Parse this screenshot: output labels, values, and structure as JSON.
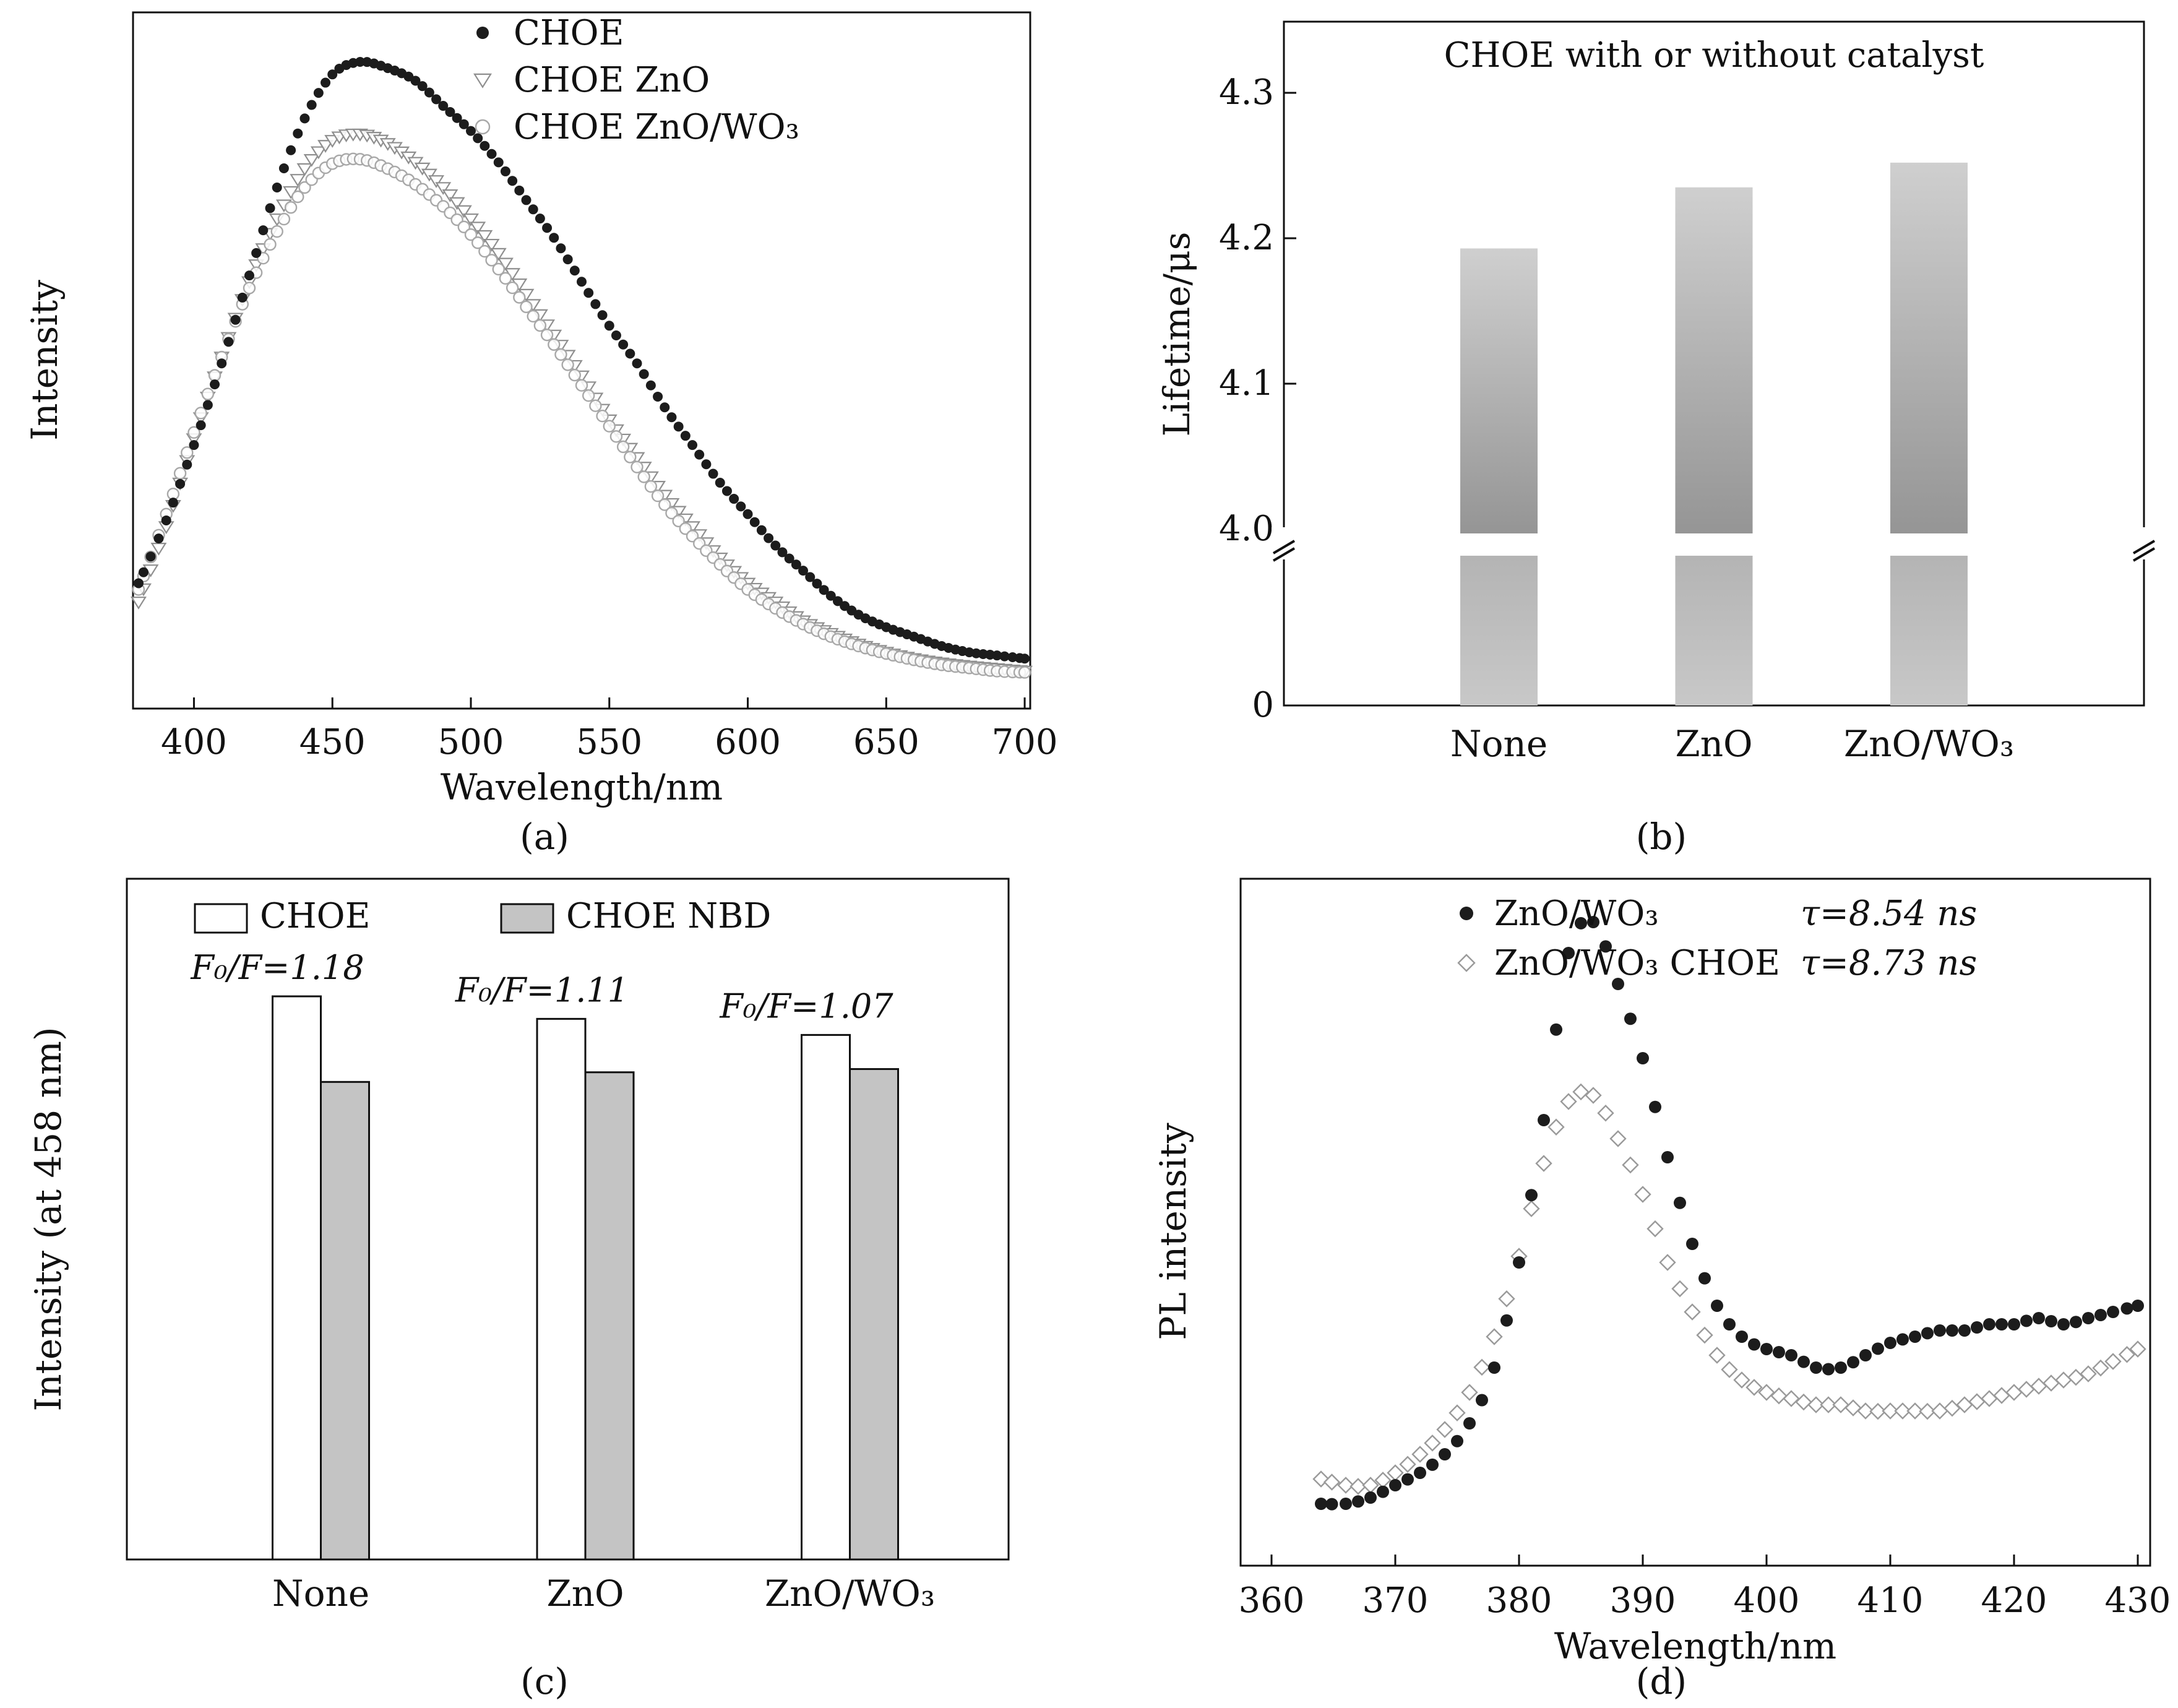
{
  "figure": {
    "background": "#ffffff"
  },
  "chart_data": [
    {
      "panel": "a",
      "type": "line",
      "xlabel": "Wavelength/nm",
      "ylabel": "Intensity",
      "caption": "(a)",
      "x_range": [
        378,
        702
      ],
      "xticks": [
        400,
        450,
        500,
        550,
        600,
        650,
        700
      ],
      "x": [
        380,
        390,
        400,
        410,
        420,
        430,
        440,
        450,
        460,
        470,
        480,
        490,
        500,
        510,
        520,
        530,
        540,
        550,
        560,
        570,
        580,
        590,
        600,
        610,
        620,
        630,
        640,
        650,
        660,
        670,
        680,
        690,
        700
      ],
      "series": [
        {
          "name": "CHOE",
          "marker": "filled-circle",
          "color": "#1c1c1c",
          "values": [
            0.17,
            0.27,
            0.39,
            0.52,
            0.66,
            0.8,
            0.91,
            0.98,
            1.0,
            0.99,
            0.97,
            0.93,
            0.89,
            0.84,
            0.78,
            0.72,
            0.65,
            0.58,
            0.52,
            0.45,
            0.39,
            0.33,
            0.28,
            0.23,
            0.19,
            0.15,
            0.12,
            0.1,
            0.085,
            0.07,
            0.06,
            0.055,
            0.05
          ]
        },
        {
          "name": "CHOE ZnO",
          "marker": "open-triangle-down",
          "color": "#8f8f8f",
          "values": [
            0.14,
            0.26,
            0.4,
            0.53,
            0.65,
            0.75,
            0.83,
            0.875,
            0.885,
            0.87,
            0.84,
            0.8,
            0.75,
            0.695,
            0.63,
            0.565,
            0.5,
            0.43,
            0.37,
            0.31,
            0.26,
            0.21,
            0.17,
            0.14,
            0.11,
            0.09,
            0.073,
            0.06,
            0.05,
            0.043,
            0.038,
            0.034,
            0.03
          ]
        },
        {
          "name": "CHOE ZnO/WO₃",
          "marker": "open-circle",
          "color": "#a8a8a8",
          "values": [
            0.16,
            0.28,
            0.41,
            0.53,
            0.64,
            0.73,
            0.8,
            0.838,
            0.845,
            0.83,
            0.805,
            0.77,
            0.725,
            0.67,
            0.61,
            0.55,
            0.485,
            0.42,
            0.355,
            0.295,
            0.245,
            0.2,
            0.16,
            0.13,
            0.105,
            0.085,
            0.07,
            0.058,
            0.048,
            0.04,
            0.035,
            0.03,
            0.028
          ]
        }
      ]
    },
    {
      "panel": "b",
      "type": "bar",
      "title": "CHOE with or without catalyst",
      "ylabel": "Lifetime/μs",
      "caption": "(b)",
      "categories": [
        "None",
        "ZnO",
        "ZnO/WO₃"
      ],
      "values": [
        4.193,
        4.235,
        4.252
      ],
      "yticks": [
        4.0,
        4.1,
        4.2,
        4.3
      ],
      "ylim_upper": [
        4.0,
        4.33
      ],
      "axis_break": true,
      "baseline_label": "0",
      "bar_colors": {
        "top": "#cfcfcf",
        "bottom": "#959595",
        "lower_top": "#b4b4b4",
        "lower_bottom": "#c8c8c8"
      }
    },
    {
      "panel": "c",
      "type": "grouped-bar",
      "ylabel": "Intensity (at 458 nm)",
      "caption": "(c)",
      "categories": [
        "None",
        "ZnO",
        "ZnO/WO₃"
      ],
      "series": [
        {
          "name": "CHOE",
          "fill": "#ffffff",
          "values": [
            0.875,
            0.84,
            0.815
          ]
        },
        {
          "name": "CHOE NBD",
          "fill": "#c4c4c4",
          "values": [
            0.742,
            0.757,
            0.762
          ]
        }
      ],
      "annotations": [
        "F₀/F=1.18",
        "F₀/F=1.11",
        "F₀/F=1.07"
      ]
    },
    {
      "panel": "d",
      "type": "scatter",
      "xlabel": "Wavelength/nm",
      "ylabel": "PL intensity",
      "caption": "(d)",
      "x_range": [
        357.5,
        431
      ],
      "xticks": [
        360,
        370,
        380,
        390,
        400,
        410,
        420,
        430
      ],
      "series": [
        {
          "name": "ZnO/WO₃",
          "tau": "τ=8.54 ns",
          "marker": "filled-circle",
          "color": "#1c1c1c",
          "x": [
            364,
            366,
            368,
            370,
            372,
            374,
            376,
            378,
            380,
            382,
            384,
            386,
            388,
            390,
            392,
            394,
            396,
            398,
            400,
            402,
            404,
            406,
            408,
            410,
            412,
            414,
            416,
            418,
            420,
            422,
            424,
            426,
            428,
            430
          ],
          "values": [
            0.06,
            0.06,
            0.07,
            0.09,
            0.11,
            0.14,
            0.19,
            0.28,
            0.45,
            0.68,
            0.95,
            1.0,
            0.9,
            0.78,
            0.62,
            0.48,
            0.38,
            0.33,
            0.31,
            0.3,
            0.28,
            0.28,
            0.3,
            0.32,
            0.33,
            0.34,
            0.34,
            0.35,
            0.35,
            0.36,
            0.35,
            0.36,
            0.37,
            0.38
          ]
        },
        {
          "name": "ZnO/WO₃ CHOE",
          "tau": "τ=8.73 ns",
          "marker": "open-diamond",
          "color": "#9a9a9a",
          "x": [
            364,
            366,
            368,
            370,
            372,
            374,
            376,
            378,
            380,
            382,
            384,
            386,
            388,
            390,
            392,
            394,
            396,
            398,
            400,
            402,
            404,
            406,
            408,
            410,
            412,
            414,
            416,
            418,
            420,
            422,
            424,
            426,
            428,
            430
          ],
          "values": [
            0.1,
            0.09,
            0.09,
            0.11,
            0.14,
            0.18,
            0.24,
            0.33,
            0.46,
            0.61,
            0.71,
            0.72,
            0.65,
            0.56,
            0.45,
            0.37,
            0.3,
            0.26,
            0.24,
            0.23,
            0.22,
            0.22,
            0.21,
            0.21,
            0.21,
            0.21,
            0.22,
            0.23,
            0.24,
            0.25,
            0.26,
            0.27,
            0.29,
            0.31
          ]
        }
      ]
    }
  ]
}
